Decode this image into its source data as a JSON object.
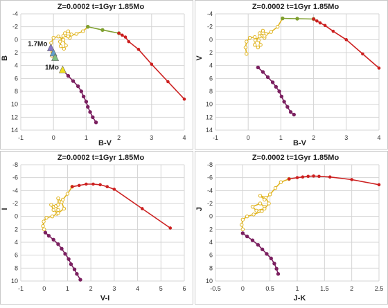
{
  "chart_data": [
    {
      "type": "scatter",
      "title": "Z=0.0002  t=1Gyr  1.85Mo",
      "xlabel": "B-V",
      "ylabel": "B",
      "xlim": [
        -1,
        4
      ],
      "ylim": [
        14,
        -4
      ],
      "xticks": [
        -1,
        0,
        1,
        2,
        3,
        4
      ],
      "yticks": [
        -4,
        -2,
        0,
        2,
        4,
        6,
        8,
        10,
        12,
        14
      ],
      "grid": true,
      "annotations": [
        {
          "text": "1.7Mo",
          "x": -0.1,
          "y": 1.0
        },
        {
          "text": "1Mo",
          "x": 0.25,
          "y": 4.6
        }
      ],
      "series": [
        {
          "color": "#7b2060",
          "kind": "main-sequence",
          "points": [
            [
              0.3,
              4.8
            ],
            [
              0.45,
              5.6
            ],
            [
              0.6,
              6.4
            ],
            [
              0.75,
              7.2
            ],
            [
              0.85,
              8.0
            ],
            [
              0.92,
              8.8
            ],
            [
              1.0,
              9.6
            ],
            [
              1.05,
              10.4
            ],
            [
              1.12,
              11.2
            ],
            [
              1.2,
              12.0
            ],
            [
              1.3,
              12.8
            ]
          ]
        },
        {
          "color": "#e0b420",
          "kind": "upper-sequence",
          "points": [
            [
              -0.05,
              2.5
            ],
            [
              -0.08,
              1.5
            ],
            [
              -0.07,
              0.5
            ],
            [
              0.0,
              -0.3
            ],
            [
              0.15,
              -0.5
            ],
            [
              0.3,
              0.0
            ],
            [
              0.38,
              0.9
            ],
            [
              0.32,
              1.4
            ],
            [
              0.22,
              1.0
            ],
            [
              0.2,
              0.3
            ],
            [
              0.3,
              -0.6
            ],
            [
              0.5,
              -0.3
            ],
            [
              0.55,
              -0.8
            ],
            [
              0.45,
              -1.3
            ],
            [
              0.35,
              -1.0
            ],
            [
              0.45,
              -0.5
            ],
            [
              0.7,
              -0.9
            ],
            [
              0.9,
              -1.3
            ],
            [
              1.05,
              -2.0
            ]
          ]
        },
        {
          "color": "#7fa030",
          "kind": "subgiant",
          "points": [
            [
              1.05,
              -2.0
            ],
            [
              1.5,
              -1.5
            ],
            [
              2.0,
              -1.0
            ]
          ]
        },
        {
          "color": "#cc2020",
          "kind": "giant-branch",
          "points": [
            [
              2.0,
              -1.0
            ],
            [
              2.1,
              -0.7
            ],
            [
              2.2,
              -0.4
            ],
            [
              2.3,
              0.3
            ],
            [
              2.6,
              1.5
            ],
            [
              3.0,
              3.8
            ],
            [
              3.5,
              6.5
            ],
            [
              4.0,
              9.2
            ]
          ]
        }
      ],
      "markers": [
        {
          "shape": "triangle",
          "label": "1.7Mo",
          "x": -0.08,
          "y": 1.2,
          "color": "#8878c8"
        },
        {
          "shape": "triangle",
          "x": 0.0,
          "y": 2.0,
          "color": "#60a0c8"
        },
        {
          "shape": "triangle",
          "x": 0.05,
          "y": 2.7,
          "color": "#80c080"
        },
        {
          "shape": "triangle",
          "label": "1Mo",
          "x": 0.28,
          "y": 4.6,
          "color": "#f0e020"
        }
      ]
    },
    {
      "type": "scatter",
      "title": "Z=0.0002  t=1Gyr  1.85Mo",
      "xlabel": "B-V",
      "ylabel": "V",
      "xlim": [
        -1,
        4
      ],
      "ylim": [
        14,
        -4
      ],
      "xticks": [
        -1,
        0,
        1,
        2,
        3,
        4
      ],
      "yticks": [
        -4,
        -2,
        0,
        2,
        4,
        6,
        8,
        10,
        12,
        14
      ],
      "grid": true,
      "series": [
        {
          "color": "#7b2060",
          "kind": "main-sequence",
          "points": [
            [
              0.3,
              4.3
            ],
            [
              0.45,
              5.0
            ],
            [
              0.6,
              5.8
            ],
            [
              0.75,
              6.6
            ],
            [
              0.85,
              7.3
            ],
            [
              0.95,
              8.0
            ],
            [
              1.02,
              8.8
            ],
            [
              1.1,
              9.6
            ],
            [
              1.2,
              10.4
            ],
            [
              1.3,
              11.2
            ],
            [
              1.4,
              11.6
            ]
          ]
        },
        {
          "color": "#e0b420",
          "kind": "upper-sequence",
          "points": [
            [
              -0.05,
              2.2
            ],
            [
              -0.08,
              1.2
            ],
            [
              -0.05,
              0.3
            ],
            [
              0.05,
              -0.3
            ],
            [
              0.2,
              -0.4
            ],
            [
              0.32,
              0.1
            ],
            [
              0.38,
              0.8
            ],
            [
              0.3,
              1.2
            ],
            [
              0.2,
              0.8
            ],
            [
              0.22,
              0.1
            ],
            [
              0.35,
              -0.5
            ],
            [
              0.5,
              -0.3
            ],
            [
              0.55,
              -0.9
            ],
            [
              0.45,
              -1.4
            ],
            [
              0.35,
              -1.0
            ],
            [
              0.5,
              -0.6
            ],
            [
              0.7,
              -1.2
            ],
            [
              0.9,
              -2.0
            ],
            [
              1.05,
              -3.3
            ]
          ]
        },
        {
          "color": "#7fa030",
          "kind": "subgiant",
          "points": [
            [
              1.05,
              -3.3
            ],
            [
              1.5,
              -3.25
            ],
            [
              2.0,
              -3.2
            ]
          ]
        },
        {
          "color": "#cc2020",
          "kind": "giant-branch",
          "points": [
            [
              2.0,
              -3.2
            ],
            [
              2.1,
              -2.9
            ],
            [
              2.2,
              -2.6
            ],
            [
              2.35,
              -2.2
            ],
            [
              2.6,
              -1.3
            ],
            [
              3.0,
              0.0
            ],
            [
              3.5,
              2.2
            ],
            [
              4.0,
              4.4
            ]
          ]
        }
      ]
    },
    {
      "type": "scatter",
      "title": "Z=0.0002  t=1Gyr  1.85Mo",
      "xlabel": "V-I",
      "ylabel": "I",
      "xlim": [
        -1,
        6
      ],
      "ylim": [
        10,
        -8
      ],
      "xticks": [
        -1,
        0,
        1,
        2,
        3,
        4,
        5,
        6
      ],
      "yticks": [
        -8,
        -6,
        -4,
        -2,
        0,
        2,
        4,
        6,
        8,
        10
      ],
      "grid": true,
      "series": [
        {
          "color": "#7b2060",
          "kind": "main-sequence",
          "points": [
            [
              0.05,
              2.5
            ],
            [
              0.2,
              3.0
            ],
            [
              0.4,
              3.6
            ],
            [
              0.6,
              4.3
            ],
            [
              0.75,
              5.0
            ],
            [
              0.9,
              5.8
            ],
            [
              1.05,
              6.6
            ],
            [
              1.15,
              7.4
            ],
            [
              1.3,
              8.2
            ],
            [
              1.4,
              8.9
            ],
            [
              1.55,
              9.8
            ]
          ]
        },
        {
          "color": "#e0b420",
          "kind": "upper-sequence",
          "points": [
            [
              0.0,
              2.0
            ],
            [
              -0.05,
              1.5
            ],
            [
              -0.02,
              0.8
            ],
            [
              0.1,
              0.2
            ],
            [
              0.35,
              0.0
            ],
            [
              0.55,
              -0.4
            ],
            [
              0.6,
              -1.0
            ],
            [
              0.5,
              -1.6
            ],
            [
              0.3,
              -1.8
            ],
            [
              0.4,
              -1.0
            ],
            [
              0.6,
              -0.5
            ],
            [
              0.85,
              -1.2
            ],
            [
              0.75,
              -2.2
            ],
            [
              0.6,
              -2.8
            ],
            [
              0.6,
              -1.8
            ],
            [
              0.8,
              -2.6
            ],
            [
              1.0,
              -3.5
            ],
            [
              1.2,
              -4.6
            ]
          ]
        },
        {
          "color": "#cc2020",
          "kind": "giant-branch",
          "points": [
            [
              1.2,
              -4.6
            ],
            [
              1.5,
              -4.8
            ],
            [
              1.8,
              -5.0
            ],
            [
              2.1,
              -5.0
            ],
            [
              2.4,
              -4.9
            ],
            [
              2.7,
              -4.6
            ],
            [
              3.0,
              -4.2
            ],
            [
              4.2,
              -1.2
            ],
            [
              5.4,
              1.8
            ]
          ]
        }
      ]
    },
    {
      "type": "scatter",
      "title": "Z=0.0002  t=1Gyr  1.85Mo",
      "xlabel": "J-K",
      "ylabel": "J",
      "xlim": [
        -0.5,
        2.5
      ],
      "ylim": [
        10,
        -8
      ],
      "xticks": [
        -0.5,
        0,
        0.5,
        1,
        1.5,
        2,
        2.5
      ],
      "yticks": [
        -8,
        -6,
        -4,
        -2,
        0,
        2,
        4,
        6,
        8,
        10
      ],
      "grid": true,
      "series": [
        {
          "color": "#7b2060",
          "kind": "main-sequence",
          "points": [
            [
              0.0,
              2.6
            ],
            [
              0.08,
              3.1
            ],
            [
              0.18,
              3.7
            ],
            [
              0.28,
              4.4
            ],
            [
              0.36,
              5.1
            ],
            [
              0.44,
              5.8
            ],
            [
              0.52,
              6.5
            ],
            [
              0.58,
              7.3
            ],
            [
              0.62,
              8.1
            ],
            [
              0.65,
              8.9
            ]
          ]
        },
        {
          "color": "#e0b420",
          "kind": "upper-sequence",
          "points": [
            [
              0.0,
              2.0
            ],
            [
              -0.02,
              1.3
            ],
            [
              0.0,
              0.5
            ],
            [
              0.08,
              0.0
            ],
            [
              0.2,
              -0.3
            ],
            [
              0.35,
              -0.8
            ],
            [
              0.4,
              -1.5
            ],
            [
              0.32,
              -2.0
            ],
            [
              0.18,
              -1.5
            ],
            [
              0.25,
              -0.9
            ],
            [
              0.4,
              -1.2
            ],
            [
              0.48,
              -2.0
            ],
            [
              0.42,
              -2.9
            ],
            [
              0.32,
              -3.2
            ],
            [
              0.4,
              -2.6
            ],
            [
              0.5,
              -3.4
            ],
            [
              0.6,
              -4.4
            ],
            [
              0.7,
              -5.3
            ],
            [
              0.85,
              -5.8
            ]
          ]
        },
        {
          "color": "#cc2020",
          "kind": "giant-branch",
          "points": [
            [
              0.85,
              -5.8
            ],
            [
              1.0,
              -6.0
            ],
            [
              1.1,
              -6.1
            ],
            [
              1.2,
              -6.2
            ],
            [
              1.3,
              -6.25
            ],
            [
              1.4,
              -6.2
            ],
            [
              1.6,
              -6.1
            ],
            [
              2.0,
              -5.7
            ],
            [
              2.5,
              -4.9
            ]
          ]
        }
      ]
    }
  ]
}
